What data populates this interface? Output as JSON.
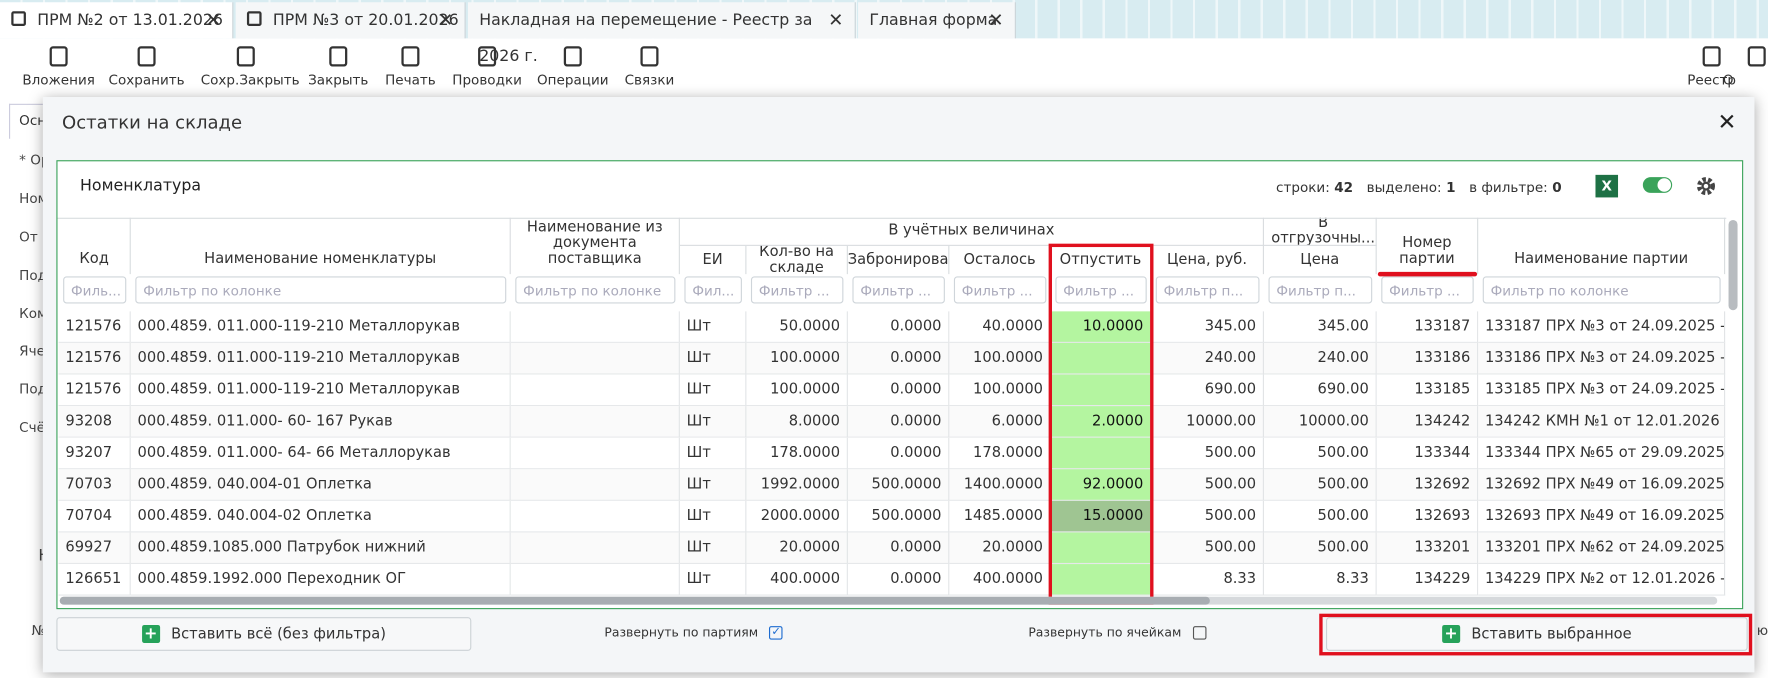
{
  "tabs": [
    "ПРМ №2 от 13.01.2026",
    "ПРМ №3 от 20.01.2026",
    "Накладная на перемещение - Реестр за 2026 г.",
    "Главная форма"
  ],
  "toolbar": {
    "buttons": [
      "Вложения",
      "Сохранить",
      "Сохр.Закрыть",
      "Закрыть",
      "Печать",
      "Проводки",
      "Операции",
      "Связки"
    ],
    "right": [
      "Реестр",
      "О"
    ]
  },
  "background_form": {
    "tab": "Осн",
    "labels": [
      "* Ор",
      "Ном",
      "От к",
      "Под",
      "Ком",
      "Ячей",
      "Под",
      "Счё"
    ],
    "section": "Н",
    "number_label": "№",
    "right_label": "ю"
  },
  "dialog": {
    "title": "Остатки на складе",
    "panel": {
      "title": "Номенклатура",
      "stats": [
        {
          "label": "строки:",
          "value": 42
        },
        {
          "label": "выделено:",
          "value": 1
        },
        {
          "label": "в фильтре:",
          "value": 0
        }
      ],
      "groups": [
        {
          "label": "В учётных величинах",
          "from": 3,
          "to": 9
        },
        {
          "label": "В отгрузочны...",
          "from": 9,
          "to": 10
        }
      ],
      "columns": [
        {
          "name": "Код",
          "filter": "Филь...",
          "align": "left"
        },
        {
          "name": "Наименование номенклатуры",
          "filter": "Фильтр по колонке",
          "align": "left"
        },
        {
          "name": "Наименование из документа поставщика",
          "filter": "Фильтр по колонке",
          "align": "left"
        },
        {
          "name": "ЕИ",
          "filter": "Фил...",
          "align": "left"
        },
        {
          "name": "Кол-во на складе",
          "filter": "Фильтр ...",
          "align": "right"
        },
        {
          "name": "Забронирова",
          "filter": "Фильтр ...",
          "align": "right"
        },
        {
          "name": "Осталось",
          "filter": "Фильтр ...",
          "align": "right"
        },
        {
          "name": "Отпустить",
          "filter": "Фильтр ...",
          "align": "right"
        },
        {
          "name": "Цена, руб.",
          "filter": "Фильтр п...",
          "align": "right"
        },
        {
          "name": "Цена",
          "filter": "Фильтр п...",
          "align": "right"
        },
        {
          "name": "Номер партии",
          "filter": "Фильтр ...",
          "align": "right"
        },
        {
          "name": "Наименование партии",
          "filter": "Фильтр по колонке",
          "align": "left"
        }
      ],
      "rows": [
        [
          "121576",
          "000.4859. 011.000-119-210 Металлорукав",
          null,
          "Шт",
          "50.0000",
          "0.0000",
          "40.0000",
          "10.0000",
          "345.00",
          "345.00",
          "133187",
          "133187 ПРХ №3 от 24.09.2025 - ..."
        ],
        [
          "121576",
          "000.4859. 011.000-119-210 Металлорукав",
          null,
          "Шт",
          "100.0000",
          "0.0000",
          "100.0000",
          null,
          "240.00",
          "240.00",
          "133186",
          "133186 ПРХ №3 от 24.09.2025 - ..."
        ],
        [
          "121576",
          "000.4859. 011.000-119-210 Металлорукав",
          null,
          "Шт",
          "100.0000",
          "0.0000",
          "100.0000",
          null,
          "690.00",
          "690.00",
          "133185",
          "133185 ПРХ №3 от 24.09.2025 - ..."
        ],
        [
          "93208",
          "000.4859. 011.000- 60- 167 Рукав",
          null,
          "Шт",
          "8.0000",
          "0.0000",
          "6.0000",
          "2.0000",
          "10000.00",
          "10000.00",
          "134242",
          "134242 КМН №1 от 12.01.2026 ..."
        ],
        [
          "93207",
          "000.4859. 011.000- 64- 66 Металлорукав",
          null,
          "Шт",
          "178.0000",
          "0.0000",
          "178.0000",
          null,
          "500.00",
          "500.00",
          "133344",
          "133344 ПРХ №65 от 29.09.2025 ..."
        ],
        [
          "70703",
          "000.4859. 040.004-01 Оплетка",
          null,
          "Шт",
          "1992.0000",
          "500.0000",
          "1400.0000",
          "92.0000",
          "500.00",
          "500.00",
          "132692",
          "132692 ПРХ №49 от 16.09.2025 ..."
        ],
        [
          "70704",
          "000.4859. 040.004-02 Оплетка",
          null,
          "Шт",
          "2000.0000",
          "500.0000",
          "1485.0000",
          "15.0000",
          "500.00",
          "500.00",
          "132693",
          "132693 ПРХ №49 от 16.09.2025 ..."
        ],
        [
          "69927",
          "000.4859.1085.000 Патрубок нижний",
          null,
          "Шт",
          "20.0000",
          "0.0000",
          "20.0000",
          null,
          "500.00",
          "500.00",
          "133201",
          "133201 ПРХ №62 от 24.09.2025 - ..."
        ],
        [
          "126651",
          "000.4859.1992.000 Переходник ОГ",
          null,
          "Шт",
          "400.0000",
          "0.0000",
          "400.0000",
          null,
          "8.33",
          "8.33",
          "134229",
          "134229 ПРХ №2 от 12.01.2026 - ..."
        ]
      ],
      "selected_row": 6
    },
    "insert_all": "Вставить всё (без фильтра)",
    "options": [
      {
        "label": "Развернуть по партиям",
        "checked": true
      },
      {
        "label": "Развернуть по ячейкам",
        "checked": false
      }
    ],
    "insert_selected": "Вставить выбранное"
  }
}
